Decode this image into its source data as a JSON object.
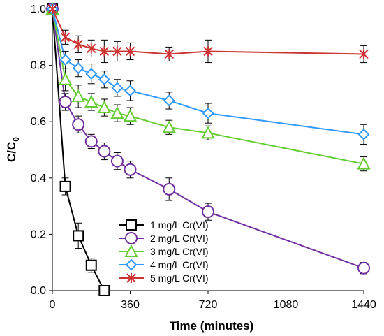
{
  "chart_data": {
    "type": "line",
    "title": "",
    "xlabel": "Time (minutes)",
    "ylabel_main": "C/C",
    "ylabel_subscript": "0",
    "xlim": [
      0,
      1440
    ],
    "ylim": [
      0,
      1.0
    ],
    "x_ticks": [
      0,
      360,
      720,
      1080,
      1440
    ],
    "y_ticks": [
      0.0,
      0.2,
      0.4,
      0.6,
      0.8,
      1.0
    ],
    "x_tick_labels": [
      "0",
      "360",
      "720",
      "1080",
      "1440"
    ],
    "y_tick_labels": [
      "0.0",
      "0.2",
      "0.4",
      "0.6",
      "0.8",
      "1.0"
    ],
    "grid": false,
    "legend_position": "bottom-center",
    "series": [
      {
        "name": "1 mg/L Cr(VI)",
        "marker": "square",
        "color": "#000000",
        "points": [
          [
            0,
            1.0
          ],
          [
            60,
            0.37
          ],
          [
            120,
            0.195
          ],
          [
            180,
            0.09
          ],
          [
            240,
            0.0
          ]
        ],
        "errors": [
          0.005,
          0.03,
          0.045,
          0.025,
          0.005
        ]
      },
      {
        "name": "2 mg/L Cr(VI)",
        "marker": "circle",
        "color": "#7030A0",
        "points": [
          [
            0,
            1.0
          ],
          [
            60,
            0.67
          ],
          [
            120,
            0.59
          ],
          [
            180,
            0.53
          ],
          [
            240,
            0.495
          ],
          [
            300,
            0.46
          ],
          [
            360,
            0.43
          ],
          [
            540,
            0.36
          ],
          [
            720,
            0.28
          ],
          [
            1440,
            0.08
          ]
        ],
        "errors": [
          0.005,
          0.03,
          0.03,
          0.025,
          0.03,
          0.03,
          0.03,
          0.04,
          0.03,
          0.02
        ]
      },
      {
        "name": "3 mg/L Cr(VI)",
        "marker": "triangle",
        "color": "#66CC33",
        "points": [
          [
            0,
            1.0
          ],
          [
            60,
            0.75
          ],
          [
            120,
            0.69
          ],
          [
            180,
            0.67
          ],
          [
            240,
            0.65
          ],
          [
            300,
            0.63
          ],
          [
            360,
            0.62
          ],
          [
            540,
            0.58
          ],
          [
            720,
            0.56
          ],
          [
            1440,
            0.45
          ]
        ],
        "errors": [
          0.005,
          0.04,
          0.04,
          0.03,
          0.03,
          0.03,
          0.03,
          0.025,
          0.025,
          0.025
        ]
      },
      {
        "name": "4 mg/L Cr(VI)",
        "marker": "diamond",
        "color": "#3399FF",
        "points": [
          [
            0,
            1.0
          ],
          [
            60,
            0.82
          ],
          [
            120,
            0.79
          ],
          [
            180,
            0.77
          ],
          [
            240,
            0.75
          ],
          [
            300,
            0.72
          ],
          [
            360,
            0.71
          ],
          [
            540,
            0.675
          ],
          [
            720,
            0.63
          ],
          [
            1440,
            0.555
          ]
        ],
        "errors": [
          0.005,
          0.03,
          0.03,
          0.035,
          0.03,
          0.03,
          0.035,
          0.03,
          0.035,
          0.035
        ]
      },
      {
        "name": "5 mg/L Cr(VI)",
        "marker": "x-cross",
        "color": "#CC3333",
        "points": [
          [
            0,
            1.0
          ],
          [
            60,
            0.9
          ],
          [
            120,
            0.875
          ],
          [
            180,
            0.86
          ],
          [
            240,
            0.85
          ],
          [
            300,
            0.85
          ],
          [
            360,
            0.85
          ],
          [
            540,
            0.84
          ],
          [
            720,
            0.85
          ],
          [
            1440,
            0.84
          ]
        ],
        "errors": [
          0.005,
          0.025,
          0.03,
          0.03,
          0.04,
          0.035,
          0.03,
          0.025,
          0.04,
          0.03
        ]
      }
    ]
  }
}
